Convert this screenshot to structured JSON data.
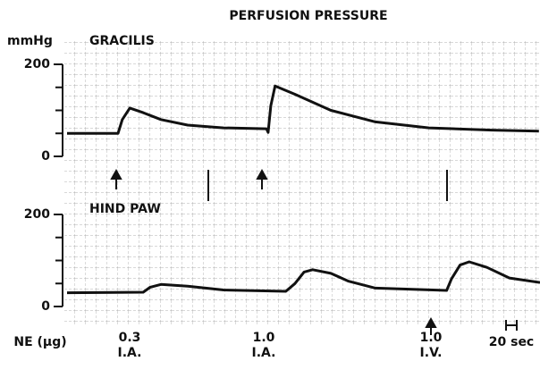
{
  "title": "PERFUSION PRESSURE",
  "dose_label": "NE (μg)",
  "doses": [
    {
      "amount": "0.3",
      "route": "I.A."
    },
    {
      "amount": "1.0",
      "route": "I.A."
    },
    {
      "amount": "1.0",
      "route": "I.V."
    }
  ],
  "scale_bar": "20 sec",
  "chart_data": [
    {
      "type": "line",
      "title": "GRACILIS",
      "ylabel": "mmHg",
      "color": "#111",
      "x": [
        0,
        95,
        103,
        117,
        142,
        175,
        225,
        292,
        372,
        375,
        380,
        388,
        425,
        492,
        575,
        675,
        792,
        880
      ],
      "values": [
        50,
        50,
        80,
        105,
        95,
        80,
        68,
        62,
        60,
        52,
        110,
        153,
        135,
        100,
        75,
        62,
        57,
        55
      ],
      "xlim": [
        0,
        882
      ],
      "ylim": [
        0,
        200
      ],
      "yticks": [
        0,
        200
      ]
    },
    {
      "type": "line",
      "title": "HIND PAW",
      "color": "#111",
      "x": [
        0,
        142,
        155,
        175,
        225,
        292,
        408,
        425,
        442,
        458,
        492,
        525,
        575,
        708,
        717,
        733,
        750,
        783,
        825,
        882
      ],
      "values": [
        30,
        31,
        42,
        48,
        44,
        36,
        33,
        50,
        75,
        80,
        72,
        55,
        40,
        35,
        60,
        90,
        97,
        85,
        62,
        52
      ],
      "xlim": [
        0,
        882
      ],
      "ylim": [
        0,
        200
      ],
      "yticks": [
        0,
        200
      ]
    }
  ]
}
